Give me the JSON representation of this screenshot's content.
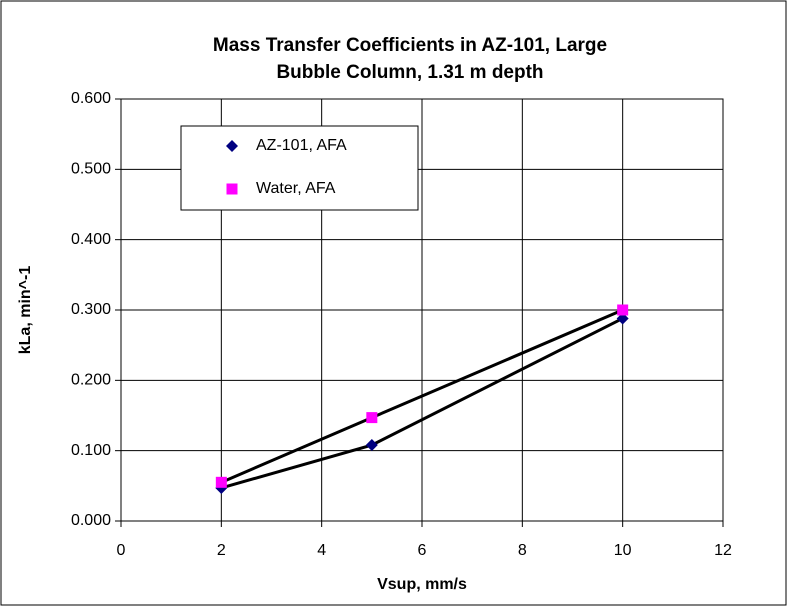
{
  "chart_data": {
    "type": "scatter",
    "title": [
      "Mass Transfer Coefficients in AZ-101, Large",
      "Bubble Column, 1.31 m depth"
    ],
    "xlabel": "Vsup, mm/s",
    "ylabel": "kLa, min^-1",
    "x": [
      2,
      5,
      10
    ],
    "series": [
      {
        "name": "AZ-101, AFA",
        "color": "#000080",
        "marker": "diamond",
        "values": [
          0.047,
          0.108,
          0.288
        ]
      },
      {
        "name": "Water, AFA",
        "color": "#ff00ff",
        "marker": "square",
        "values": [
          0.055,
          0.147,
          0.3
        ]
      }
    ],
    "xlim": [
      0,
      12
    ],
    "xticks": [
      0,
      2,
      4,
      6,
      8,
      10,
      12
    ],
    "ylim": [
      0,
      0.6
    ],
    "yticks": [
      {
        "value": 0,
        "label": "0.000"
      },
      {
        "value": 0.1,
        "label": "0.100"
      },
      {
        "value": 0.2,
        "label": "0.200"
      },
      {
        "value": 0.3,
        "label": "0.300"
      },
      {
        "value": 0.4,
        "label": "0.400"
      },
      {
        "value": 0.5,
        "label": "0.500"
      },
      {
        "value": 0.6,
        "label": "0.600"
      }
    ],
    "grid": true,
    "legend": "upper left",
    "line_color": "#000000"
  }
}
